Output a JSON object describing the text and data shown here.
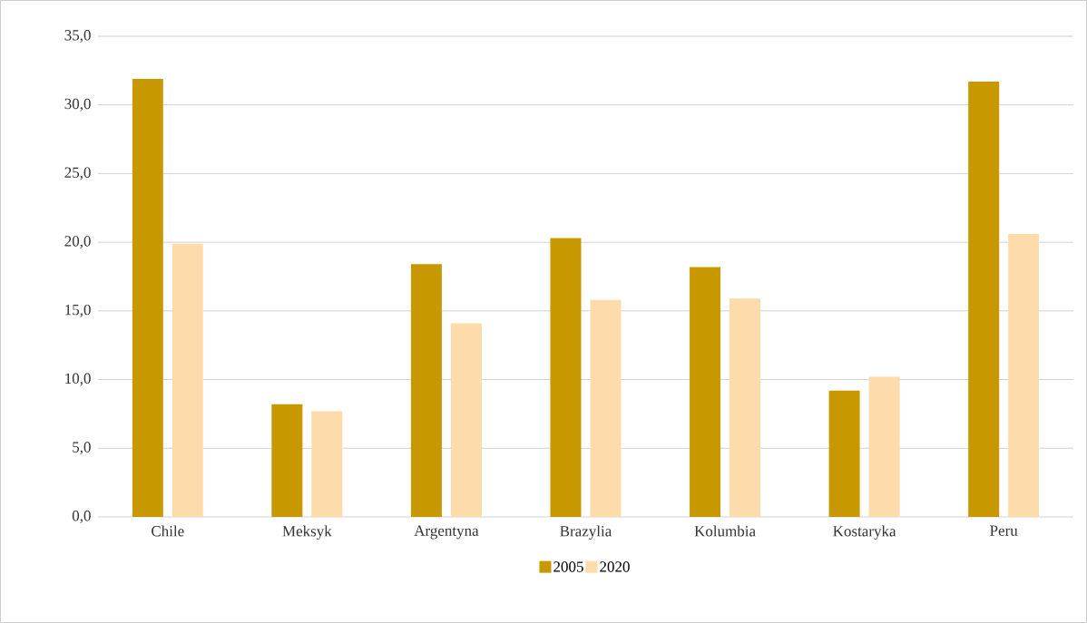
{
  "chart_data": {
    "type": "bar",
    "categories": [
      "Chile",
      "Meksyk",
      "Argentyna",
      "Brazylia",
      "Kolumbia",
      "Kostaryka",
      "Peru"
    ],
    "series": [
      {
        "name": "2005",
        "color": "#c89800",
        "values": [
          31.9,
          8.2,
          18.4,
          20.3,
          18.2,
          9.2,
          31.7
        ]
      },
      {
        "name": "2020",
        "color": "#fddbaa",
        "values": [
          19.9,
          7.7,
          14.1,
          15.8,
          15.9,
          10.2,
          20.6
        ]
      }
    ],
    "ylim": [
      0,
      35
    ],
    "yticks": [
      {
        "value": 0,
        "label": "0,0"
      },
      {
        "value": 5,
        "label": "5,0"
      },
      {
        "value": 10,
        "label": "10,0"
      },
      {
        "value": 15,
        "label": "15,0"
      },
      {
        "value": 20,
        "label": "20,0"
      },
      {
        "value": 25,
        "label": "25,0"
      },
      {
        "value": 30,
        "label": "30,0"
      },
      {
        "value": 35,
        "label": "35,0"
      }
    ],
    "grid": "y",
    "legend": "bottom"
  }
}
